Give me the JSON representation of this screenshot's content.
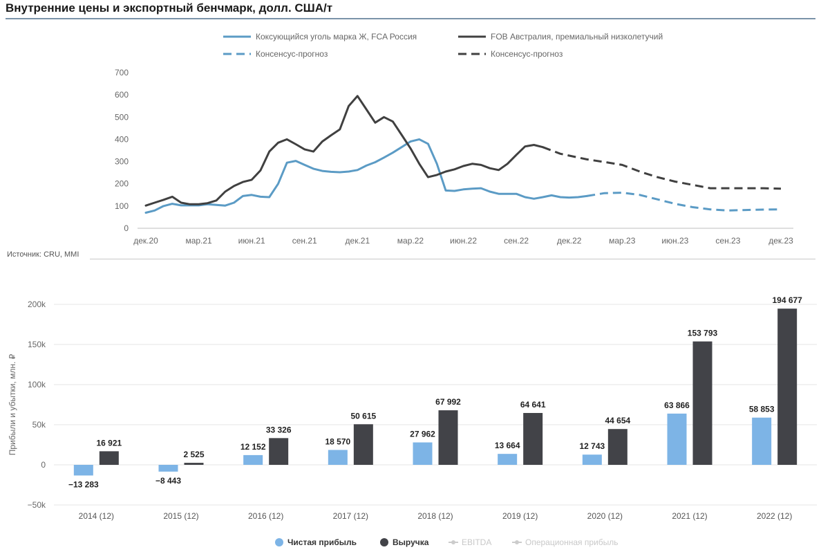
{
  "header": {
    "title": "Внутренние цены и экспортный бенчмарк, долл. США/т",
    "source": "Источник: CRU, MMI"
  },
  "chart_data": [
    {
      "type": "line",
      "ylim": [
        0,
        700
      ],
      "yticks": [
        0,
        100,
        200,
        300,
        400,
        500,
        600,
        700
      ],
      "x_tick_labels": [
        "дек.20",
        "мар.21",
        "июн.21",
        "сен.21",
        "дек.21",
        "мар.22",
        "июн.22",
        "сен.22",
        "дек.22",
        "мар.23",
        "июн.23",
        "сен.23",
        "дек.23"
      ],
      "x_unit": "month index from дек.20",
      "legend_position": "top",
      "series": [
        {
          "name": "Коксующийся уголь марка Ж, FCA Россия",
          "color": "#5b9bc5",
          "dashed": false,
          "points": [
            [
              0,
              70
            ],
            [
              0.5,
              80
            ],
            [
              1,
              100
            ],
            [
              1.5,
              110
            ],
            [
              2,
              103
            ],
            [
              2.5,
              103
            ],
            [
              3,
              103
            ],
            [
              3.5,
              108
            ],
            [
              4,
              105
            ],
            [
              4.5,
              102
            ],
            [
              5,
              115
            ],
            [
              5.5,
              145
            ],
            [
              6,
              150
            ],
            [
              6.5,
              142
            ],
            [
              7,
              140
            ],
            [
              7.5,
              200
            ],
            [
              8,
              295
            ],
            [
              8.5,
              303
            ],
            [
              9,
              285
            ],
            [
              9.5,
              268
            ],
            [
              10,
              258
            ],
            [
              10.5,
              254
            ],
            [
              11,
              252
            ],
            [
              11.5,
              255
            ],
            [
              12,
              262
            ],
            [
              12.5,
              282
            ],
            [
              13,
              297
            ],
            [
              13.5,
              318
            ],
            [
              14,
              340
            ],
            [
              14.5,
              365
            ],
            [
              15,
              390
            ],
            [
              15.5,
              400
            ],
            [
              16,
              380
            ],
            [
              16.5,
              290
            ],
            [
              17,
              170
            ],
            [
              17.5,
              168
            ],
            [
              18,
              175
            ],
            [
              18.5,
              178
            ],
            [
              19,
              180
            ],
            [
              19.5,
              165
            ],
            [
              20,
              155
            ],
            [
              20.5,
              155
            ],
            [
              21,
              155
            ],
            [
              21.5,
              140
            ],
            [
              22,
              133
            ],
            [
              22.5,
              140
            ],
            [
              23,
              148
            ],
            [
              23.5,
              140
            ],
            [
              24,
              138
            ],
            [
              24.5,
              140
            ],
            [
              25,
              145
            ]
          ]
        },
        {
          "name": "FOB Австралия, премиальный низколетучий",
          "color": "#404040",
          "dashed": false,
          "points": [
            [
              0,
              102
            ],
            [
              0.5,
              115
            ],
            [
              1,
              128
            ],
            [
              1.5,
              142
            ],
            [
              2,
              115
            ],
            [
              2.5,
              108
            ],
            [
              3,
              108
            ],
            [
              3.5,
              113
            ],
            [
              4,
              125
            ],
            [
              4.5,
              165
            ],
            [
              5,
              190
            ],
            [
              5.5,
              208
            ],
            [
              6,
              218
            ],
            [
              6.5,
              260
            ],
            [
              7,
              345
            ],
            [
              7.5,
              385
            ],
            [
              8,
              400
            ],
            [
              8.5,
              378
            ],
            [
              9,
              355
            ],
            [
              9.5,
              345
            ],
            [
              10,
              390
            ],
            [
              10.5,
              418
            ],
            [
              11,
              445
            ],
            [
              11.5,
              550
            ],
            [
              12,
              595
            ],
            [
              12.5,
              535
            ],
            [
              13,
              475
            ],
            [
              13.5,
              500
            ],
            [
              14,
              480
            ],
            [
              14.5,
              420
            ],
            [
              15,
              360
            ],
            [
              15.5,
              290
            ],
            [
              16,
              230
            ],
            [
              16.5,
              240
            ],
            [
              17,
              255
            ],
            [
              17.5,
              265
            ],
            [
              18,
              280
            ],
            [
              18.5,
              290
            ],
            [
              19,
              285
            ],
            [
              19.5,
              270
            ],
            [
              20,
              262
            ],
            [
              20.5,
              290
            ],
            [
              21,
              330
            ],
            [
              21.5,
              368
            ],
            [
              22,
              375
            ],
            [
              22.5,
              365
            ]
          ]
        },
        {
          "name": "Консенсус-прогноз",
          "color": "#5b9bc5",
          "dashed": true,
          "points": [
            [
              25,
              145
            ],
            [
              26,
              158
            ],
            [
              27,
              160
            ],
            [
              28,
              150
            ],
            [
              29,
              130
            ],
            [
              30,
              110
            ],
            [
              31,
              95
            ],
            [
              32,
              85
            ],
            [
              33,
              80
            ],
            [
              34,
              82
            ],
            [
              35,
              84
            ],
            [
              36,
              85
            ]
          ]
        },
        {
          "name": "Консенсус-прогноз",
          "color": "#404040",
          "dashed": true,
          "points": [
            [
              22.5,
              365
            ],
            [
              23.5,
              335
            ],
            [
              25,
              310
            ],
            [
              26,
              298
            ],
            [
              27,
              285
            ],
            [
              28,
              255
            ],
            [
              29,
              230
            ],
            [
              30,
              210
            ],
            [
              31,
              195
            ],
            [
              32,
              180
            ],
            [
              33,
              180
            ],
            [
              34,
              180
            ],
            [
              35,
              180
            ],
            [
              36,
              178
            ]
          ]
        }
      ]
    },
    {
      "type": "bar",
      "ylabel": "Прибыли и убытки, млн. ₽",
      "ylim": [
        -50000,
        200000
      ],
      "yticks": [
        -50000,
        0,
        50000,
        100000,
        150000,
        200000
      ],
      "ytick_labels": [
        "−50k",
        "0",
        "50k",
        "100k",
        "150k",
        "200k"
      ],
      "grid": true,
      "legend_position": "bottom",
      "categories": [
        "2014 (12)",
        "2015 (12)",
        "2016 (12)",
        "2017 (12)",
        "2018 (12)",
        "2019 (12)",
        "2020 (12)",
        "2021 (12)",
        "2022 (12)"
      ],
      "series": [
        {
          "name": "Чистая прибыль",
          "color": "#7db4e6",
          "values": [
            -13283,
            -8443,
            12152,
            18570,
            27962,
            13664,
            12743,
            63866,
            58853
          ],
          "labels": [
            "−13 283",
            "−8 443",
            "12 152",
            "18 570",
            "27 962",
            "13 664",
            "12 743",
            "63 866",
            "58 853"
          ]
        },
        {
          "name": "Выручка",
          "color": "#424348",
          "values": [
            16921,
            2525,
            33326,
            50615,
            67992,
            64641,
            44654,
            153793,
            194677
          ],
          "labels": [
            "16 921",
            "2 525",
            "33 326",
            "50 615",
            "67 992",
            "64 641",
            "44 654",
            "153 793",
            "194 677"
          ]
        }
      ],
      "legend": [
        {
          "name": "Чистая прибыль",
          "color": "#7db4e6",
          "active": true
        },
        {
          "name": "Выручка",
          "color": "#424348",
          "active": true
        },
        {
          "name": "EBITDA",
          "color": "#cccccc",
          "active": false
        },
        {
          "name": "Операционная прибыль",
          "color": "#cccccc",
          "active": false
        }
      ]
    }
  ]
}
